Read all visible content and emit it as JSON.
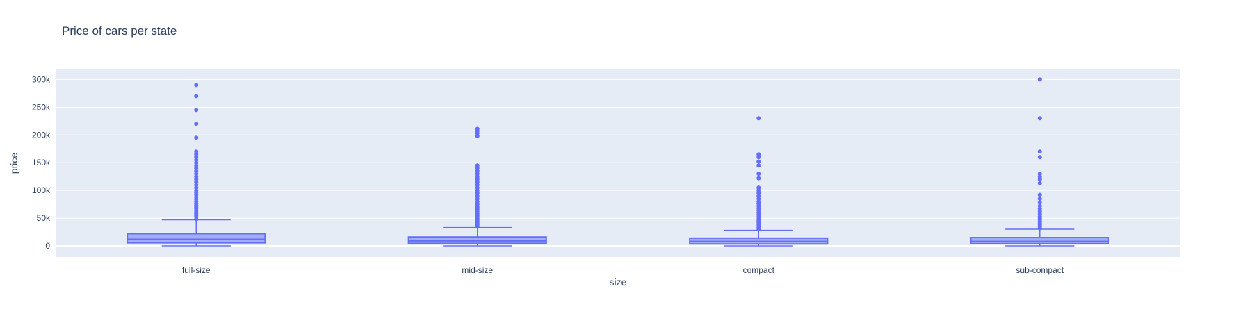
{
  "chart_data": {
    "type": "box",
    "title": "Price of cars per state",
    "xlabel": "size",
    "ylabel": "price",
    "categories": [
      "full-size",
      "mid-size",
      "compact",
      "sub-compact"
    ],
    "ylim": [
      -20000,
      318000
    ],
    "yticks": [
      0,
      50000,
      100000,
      150000,
      200000,
      250000,
      300000
    ],
    "ytick_labels": [
      "0",
      "50k",
      "100k",
      "150k",
      "200k",
      "250k",
      "300k"
    ],
    "grid": true,
    "legend": "none",
    "colors": {
      "box": "#636efa",
      "box_fill": "rgba(99,110,250,0.5)",
      "plot_bg": "#e5ecf6",
      "grid": "#ffffff",
      "text": "#2a3f5f"
    },
    "boxes": [
      {
        "category": "full-size",
        "lower_fence": 0,
        "q1": 5500,
        "median": 12000,
        "q3": 22000,
        "upper_fence": 47000,
        "outliers": [
          48000,
          52000,
          55000,
          58000,
          61000,
          64000,
          67000,
          70000,
          73000,
          76000,
          80000,
          84000,
          88000,
          92000,
          96000,
          100000,
          105000,
          110000,
          115000,
          120000,
          125000,
          130000,
          135000,
          140000,
          145000,
          150000,
          155000,
          160000,
          165000,
          170000,
          195000,
          220000,
          245000,
          270000,
          290000
        ]
      },
      {
        "category": "mid-size",
        "lower_fence": 0,
        "q1": 4500,
        "median": 9000,
        "q3": 16000,
        "upper_fence": 33000,
        "outliers": [
          35000,
          38000,
          41000,
          44000,
          47000,
          50000,
          54000,
          58000,
          62000,
          66000,
          70000,
          75000,
          80000,
          85000,
          90000,
          95000,
          100000,
          105000,
          110000,
          115000,
          120000,
          125000,
          130000,
          135000,
          140000,
          145000,
          198000,
          203000,
          207000,
          211000
        ]
      },
      {
        "category": "compact",
        "lower_fence": 0,
        "q1": 3500,
        "median": 8000,
        "q3": 14000,
        "upper_fence": 28000,
        "outliers": [
          30000,
          33000,
          36000,
          39000,
          42000,
          45000,
          48000,
          52000,
          56000,
          60000,
          64000,
          68000,
          72000,
          76000,
          80000,
          85000,
          90000,
          95000,
          100000,
          105000,
          122000,
          130000,
          145000,
          152000,
          160000,
          165000,
          230000
        ]
      },
      {
        "category": "sub-compact",
        "lower_fence": 0,
        "q1": 4000,
        "median": 8000,
        "q3": 15000,
        "upper_fence": 30000,
        "outliers": [
          32000,
          35000,
          38000,
          41000,
          44000,
          47000,
          50000,
          53000,
          57000,
          62000,
          67000,
          72000,
          78000,
          85000,
          92000,
          113000,
          120000,
          125000,
          130000,
          160000,
          170000,
          230000,
          300000
        ]
      }
    ]
  }
}
